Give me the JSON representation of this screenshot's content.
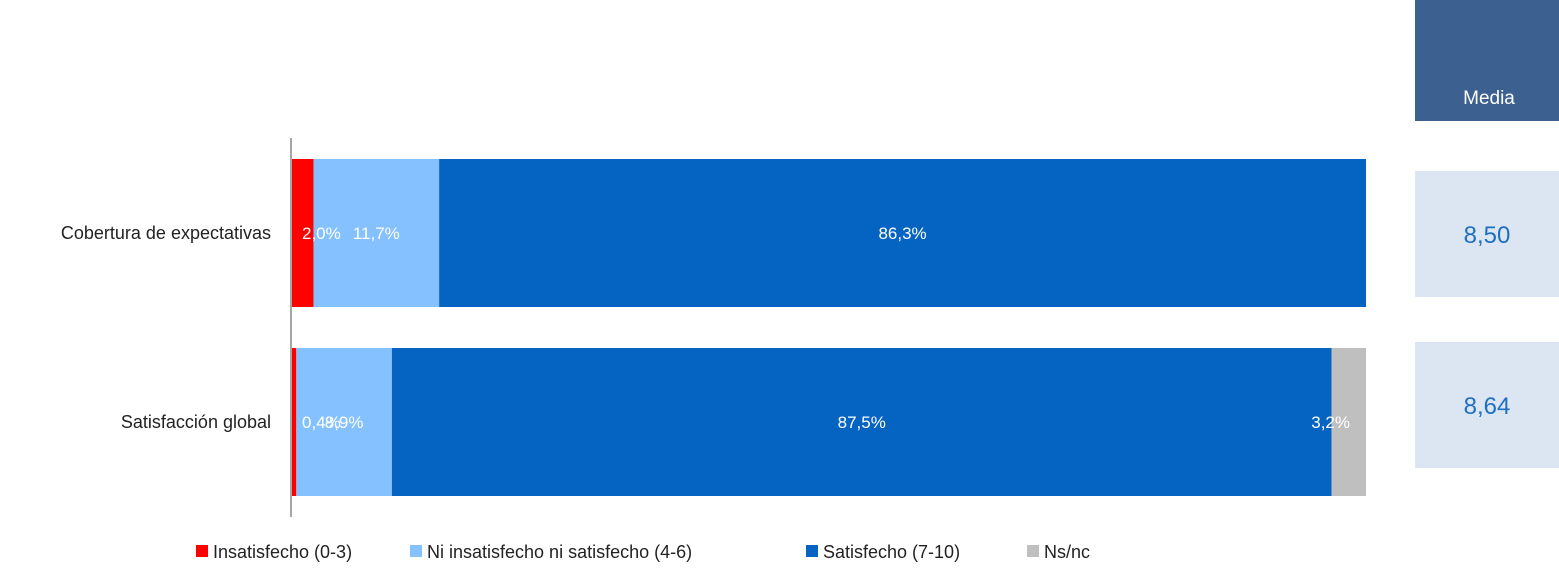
{
  "chart_data": {
    "type": "bar",
    "orientation": "horizontal",
    "stacked": true,
    "categories": [
      "Cobertura de expectativas",
      "Satisfacción global"
    ],
    "series": [
      {
        "name": "Insatisfecho (0-3)",
        "color": "#ff0000",
        "values": [
          2.0,
          0.4
        ],
        "labels": [
          "2,0%",
          "0,4%"
        ]
      },
      {
        "name": "Ni insatisfecho ni satisfecho (4-6)",
        "color": "#85c1ff",
        "values": [
          11.7,
          8.9
        ],
        "labels": [
          "11,7%",
          "8,9%"
        ]
      },
      {
        "name": "Satisfecho (7-10)",
        "color": "#0563c1",
        "values": [
          86.3,
          87.5
        ],
        "labels": [
          "86,3%",
          "87,5%"
        ]
      },
      {
        "name": "Ns/nc",
        "color": "#bfbfbf",
        "values": [
          0,
          3.2
        ],
        "labels": [
          "",
          "3,2%"
        ]
      }
    ],
    "xlim": [
      0,
      100
    ],
    "grid": false,
    "legend_position": "bottom",
    "media": {
      "header": "Media",
      "values": [
        "8,50",
        "8,64"
      ],
      "header_color": "#3c6090",
      "cell_color": "#dce6f2",
      "value_color": "#1f6fc0"
    }
  }
}
